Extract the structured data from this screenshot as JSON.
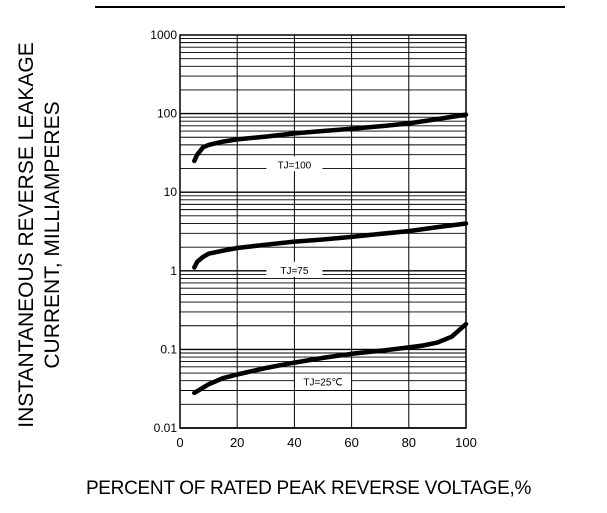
{
  "chart_data": {
    "type": "line",
    "title": "",
    "xlabel": "PERCENT OF RATED PEAK REVERSE VOLTAGE,%",
    "ylabel_lines": [
      "INSTANTANEOUS REVERSE LEAKAGE",
      "CURRENT, MILLIAMPERES"
    ],
    "x_ticks": [
      "0",
      "20",
      "40",
      "60",
      "80",
      "100"
    ],
    "y_ticks": [
      "0.01",
      "0.1",
      "1",
      "10",
      "100",
      "1000"
    ],
    "xlim": [
      0,
      100
    ],
    "ylim": [
      0.01,
      1000
    ],
    "y_scale": "log",
    "grid": true,
    "series": [
      {
        "name": "TJ=100",
        "x": [
          5,
          6,
          8,
          10,
          15,
          20,
          30,
          40,
          50,
          60,
          70,
          80,
          90,
          100
        ],
        "values": [
          25,
          30,
          37,
          40,
          44,
          47,
          51,
          56,
          60,
          64,
          69,
          75,
          85,
          97
        ]
      },
      {
        "name": "TJ=75",
        "x": [
          5,
          6,
          8,
          10,
          15,
          20,
          30,
          40,
          50,
          60,
          70,
          80,
          90,
          100
        ],
        "values": [
          1.1,
          1.3,
          1.5,
          1.65,
          1.8,
          1.95,
          2.15,
          2.35,
          2.5,
          2.7,
          2.95,
          3.2,
          3.6,
          4.0
        ]
      },
      {
        "name": "TJ=25℃",
        "x": [
          5,
          10,
          15,
          20,
          30,
          40,
          50,
          60,
          70,
          80,
          85,
          90,
          95,
          100
        ],
        "values": [
          0.028,
          0.036,
          0.043,
          0.048,
          0.058,
          0.068,
          0.078,
          0.088,
          0.096,
          0.106,
          0.112,
          0.122,
          0.145,
          0.21
        ]
      }
    ]
  }
}
